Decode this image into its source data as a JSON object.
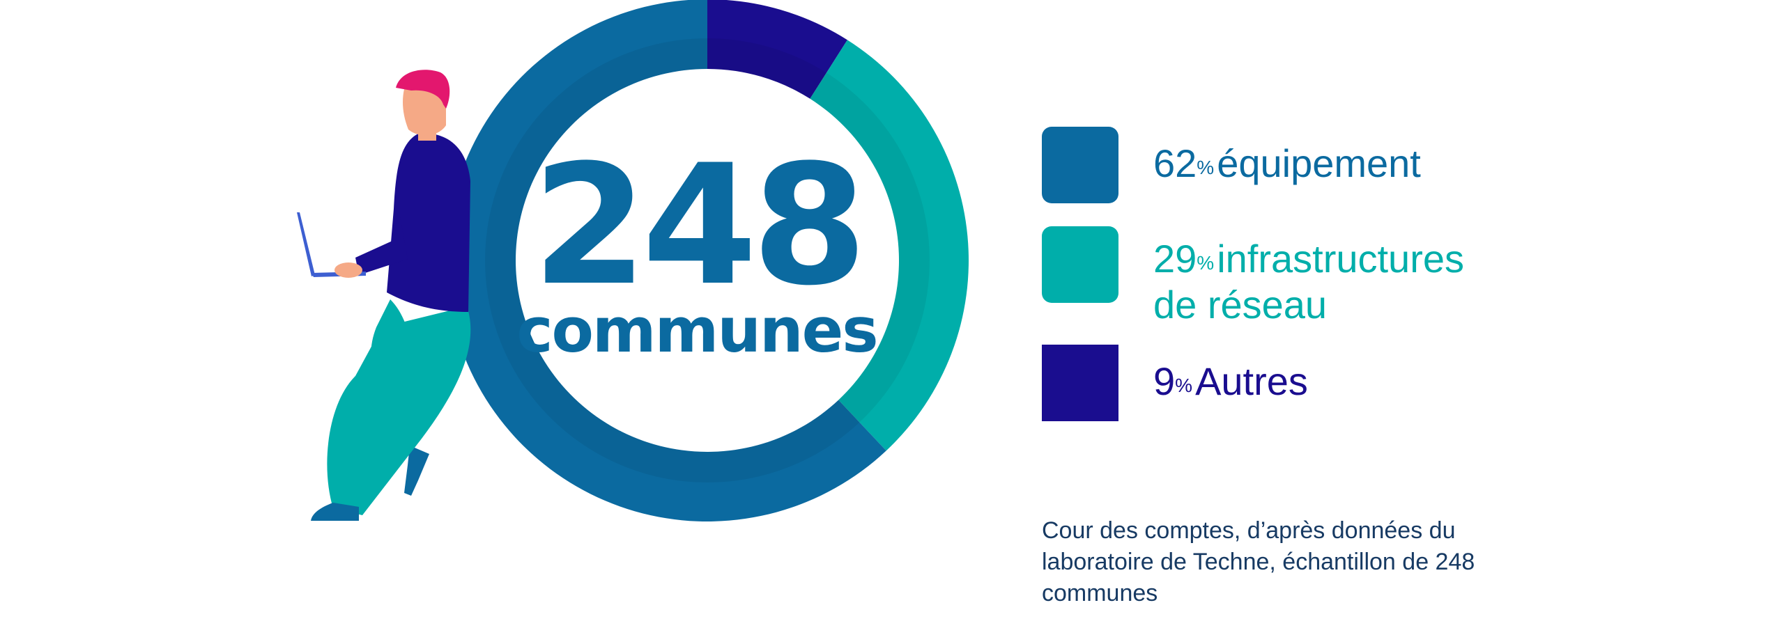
{
  "chart_data": {
    "type": "pie",
    "center_value": "248",
    "center_label": "communes",
    "slices": [
      {
        "label": "Autres",
        "value": 9,
        "unit": "%",
        "color": "#1a0d8f"
      },
      {
        "label": "infrastructures de réseau",
        "label_lines": [
          "infrastructures",
          "de réseau"
        ],
        "value": 29,
        "unit": "%",
        "color": "#00aeaa"
      },
      {
        "label": "équipement",
        "value": 62,
        "unit": "%",
        "color": "#0b6aa0"
      }
    ],
    "legend_order": [
      2,
      1,
      0
    ],
    "legend_placement": "right",
    "source": "Cour des comptes, d’après données du laboratoire de Techne, échantillon de 248 communes"
  },
  "illustration": {
    "name": "person-leaning-with-laptop",
    "colors": [
      "#e3176e",
      "#1a0d8f",
      "#00aeaa",
      "#0b6aa0"
    ]
  }
}
